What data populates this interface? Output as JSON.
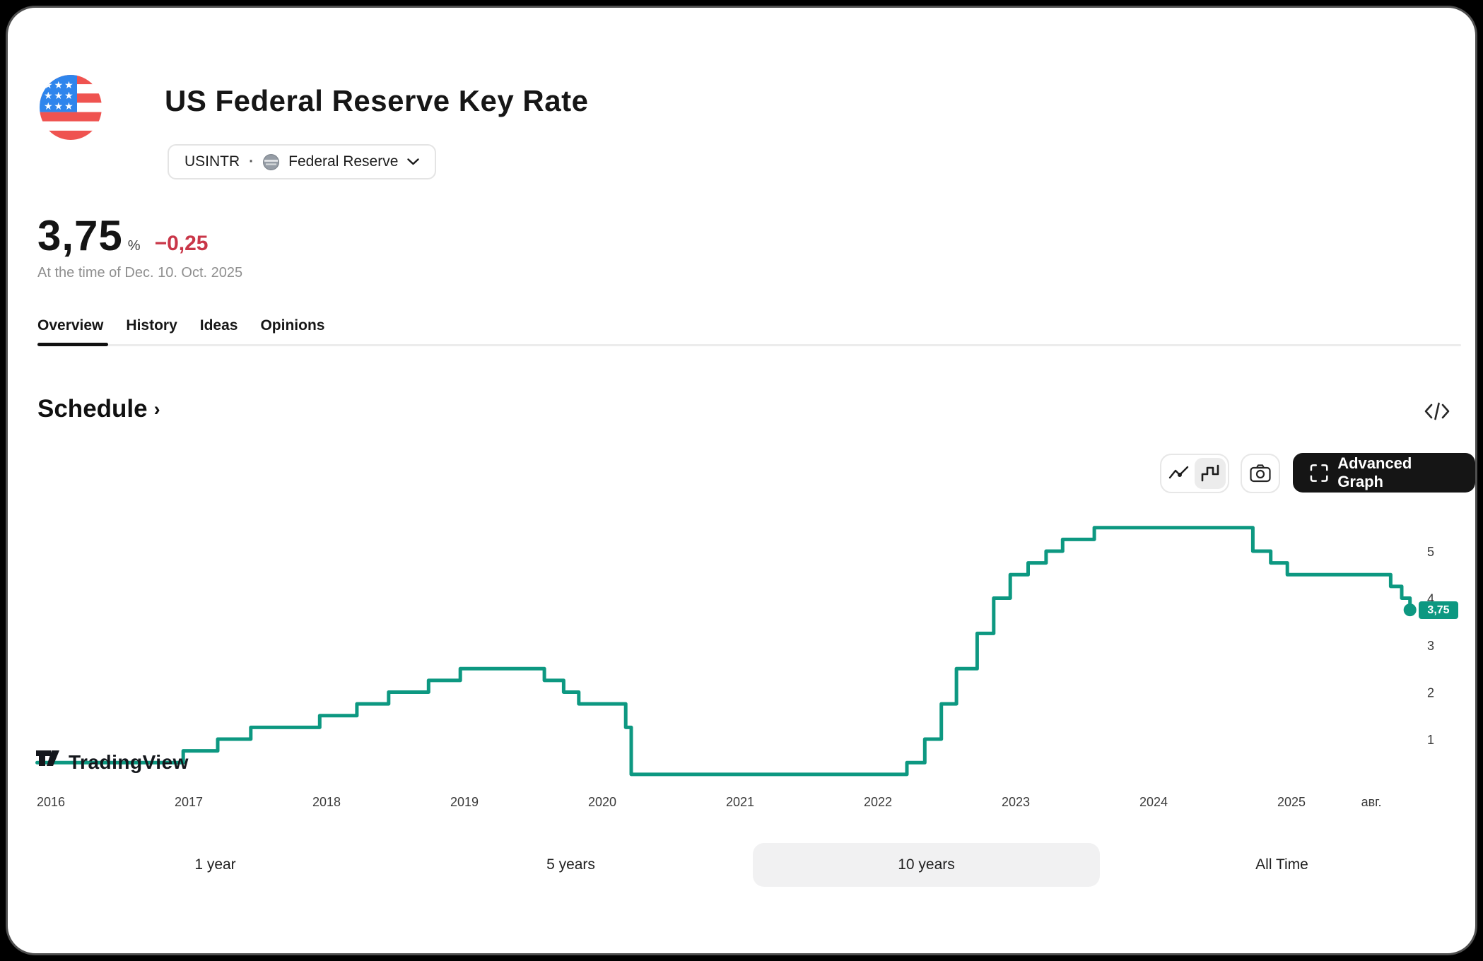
{
  "header": {
    "title": "US Federal Reserve Key Rate",
    "symbol": "USINTR",
    "separator": "·",
    "source": "Federal Reserve"
  },
  "quote": {
    "value": "3,75",
    "unit": "%",
    "change": "−0,25",
    "as_of": "At the time of Dec. 10. Oct. 2025"
  },
  "tabs": [
    {
      "label": "Overview",
      "active": true
    },
    {
      "label": "History",
      "active": false
    },
    {
      "label": "Ideas",
      "active": false
    },
    {
      "label": "Opinions",
      "active": false
    }
  ],
  "section": {
    "title": "Schedule",
    "chevron": "›"
  },
  "toolbar": {
    "advanced_label": "Advanced Graph"
  },
  "watermark": "TradingView",
  "colors": {
    "line": "#0d9881",
    "badge": "#0d9881",
    "change_negative": "#c93648",
    "flag_blue": "#2f85ec",
    "flag_red": "#ef5350",
    "advanced_button_bg": "#151515"
  },
  "chart_data": {
    "type": "line",
    "style": "step-after",
    "title": "US Federal Reserve Key Rate schedule",
    "grid": false,
    "legend": false,
    "xlim": [
      2015.9,
      2026.05
    ],
    "ylim": [
      0,
      5.8
    ],
    "x_ticks": [
      {
        "t": 2016,
        "label": "2016"
      },
      {
        "t": 2017,
        "label": "2017"
      },
      {
        "t": 2018,
        "label": "2018"
      },
      {
        "t": 2019,
        "label": "2019"
      },
      {
        "t": 2020,
        "label": "2020"
      },
      {
        "t": 2021,
        "label": "2021"
      },
      {
        "t": 2022,
        "label": "2022"
      },
      {
        "t": 2023,
        "label": "2023"
      },
      {
        "t": 2024,
        "label": "2024"
      },
      {
        "t": 2025,
        "label": "2025"
      },
      {
        "t": 2025.58,
        "label": "авг."
      }
    ],
    "y_ticks": [
      1,
      2,
      3,
      4,
      5
    ],
    "series": [
      {
        "name": "USINTR",
        "points": [
          [
            2015.9,
            0.5
          ],
          [
            2016.96,
            0.75
          ],
          [
            2017.21,
            1.0
          ],
          [
            2017.45,
            1.25
          ],
          [
            2017.95,
            1.5
          ],
          [
            2018.22,
            1.75
          ],
          [
            2018.45,
            2.0
          ],
          [
            2018.74,
            2.25
          ],
          [
            2018.97,
            2.5
          ],
          [
            2019.58,
            2.25
          ],
          [
            2019.72,
            2.0
          ],
          [
            2019.83,
            1.75
          ],
          [
            2020.17,
            1.25
          ],
          [
            2020.21,
            0.25
          ],
          [
            2022.21,
            0.5
          ],
          [
            2022.34,
            1.0
          ],
          [
            2022.46,
            1.75
          ],
          [
            2022.57,
            2.5
          ],
          [
            2022.72,
            3.25
          ],
          [
            2022.84,
            4.0
          ],
          [
            2022.96,
            4.5
          ],
          [
            2023.09,
            4.75
          ],
          [
            2023.22,
            5.0
          ],
          [
            2023.34,
            5.25
          ],
          [
            2023.57,
            5.5
          ],
          [
            2024.72,
            5.0
          ],
          [
            2024.85,
            4.75
          ],
          [
            2024.97,
            4.5
          ],
          [
            2025.72,
            4.25
          ],
          [
            2025.8,
            4.0
          ],
          [
            2025.86,
            3.75
          ]
        ]
      }
    ],
    "last_value_label": "3,75"
  },
  "range_buttons": [
    {
      "label": "1 year",
      "selected": false
    },
    {
      "label": "5 years",
      "selected": false
    },
    {
      "label": "10 years",
      "selected": true
    },
    {
      "label": "All Time",
      "selected": false
    }
  ]
}
